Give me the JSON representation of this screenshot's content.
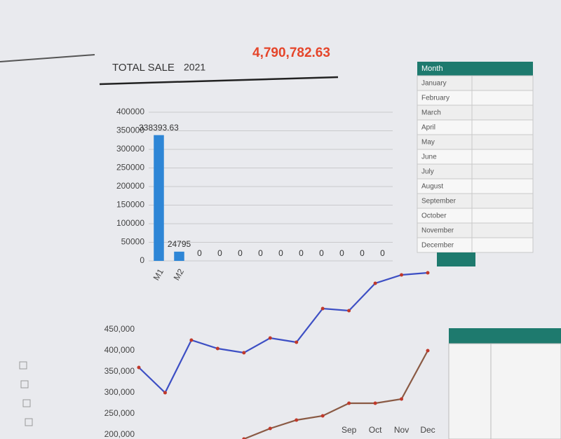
{
  "header": {
    "label": "TOTAL SALE",
    "year": "2021",
    "total": "4,790,782.63"
  },
  "chart_data": [
    {
      "type": "bar",
      "categories": [
        "M1",
        "M2",
        null,
        null,
        null,
        null,
        null,
        null,
        null,
        null,
        null,
        null
      ],
      "values": [
        338393.63,
        24795,
        0,
        0,
        0,
        0,
        0,
        0,
        0,
        0,
        0,
        0
      ],
      "color": "#2e86d6",
      "ylim": [
        0,
        400000
      ],
      "yticks": [
        0,
        50000,
        100000,
        150000,
        200000,
        250000,
        300000,
        350000,
        400000
      ],
      "grid": true
    },
    {
      "type": "line",
      "categories": [
        null,
        null,
        null,
        null,
        null,
        null,
        null,
        null,
        "Sep",
        "Oct",
        "Nov",
        "Dec"
      ],
      "series": [
        {
          "color": "#3d4fc4",
          "values": [
            360000,
            300000,
            425000,
            405000,
            395000,
            430000,
            420000,
            500000,
            495000,
            560000,
            580000,
            585000
          ]
        },
        {
          "color": "#8a5a44",
          "values": [
            null,
            null,
            null,
            null,
            190000,
            215000,
            235000,
            245000,
            275000,
            275000,
            285000,
            400000
          ]
        }
      ],
      "ylim": [
        150000,
        600000
      ],
      "yticks": [
        {
          "value": 200000,
          "label": "200,000"
        },
        {
          "value": 250000,
          "label": "250,000"
        },
        {
          "value": 300000,
          "label": "300,000"
        },
        {
          "value": 350000,
          "label": "350,000"
        },
        {
          "value": 400000,
          "label": "400,000"
        },
        {
          "value": 450000,
          "label": "450,000"
        }
      ]
    }
  ],
  "table": {
    "header": "Month",
    "rows": [
      "January",
      "February",
      "March",
      "April",
      "May",
      "June",
      "July",
      "August",
      "September",
      "October",
      "November",
      "December"
    ]
  }
}
